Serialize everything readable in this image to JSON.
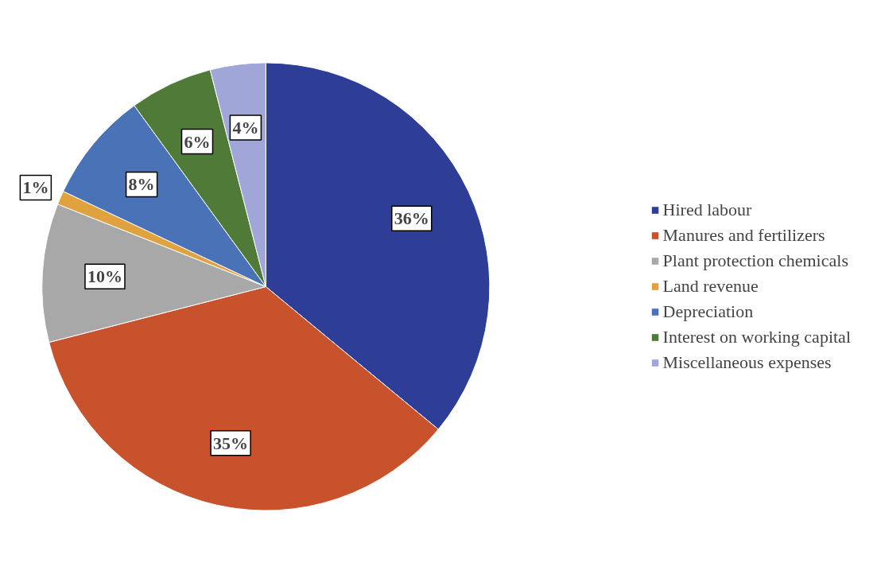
{
  "chart_data": {
    "type": "pie",
    "categories": [
      "Hired labour",
      "Manures and fertilizers",
      "Plant protection chemicals",
      "Land revenue",
      "Depreciation",
      "Interest on working capital",
      "Miscellaneous expenses"
    ],
    "values": [
      36,
      35,
      10,
      1,
      8,
      6,
      4
    ],
    "colors": [
      "#2e3d96",
      "#c8522b",
      "#a8a8a8",
      "#e0a23f",
      "#4a72b6",
      "#4f7a38",
      "#a0a6d8"
    ],
    "value_labels": [
      "36%",
      "35%",
      "10%",
      "1%",
      "8%",
      "6%",
      "4%"
    ],
    "legend": "right"
  }
}
